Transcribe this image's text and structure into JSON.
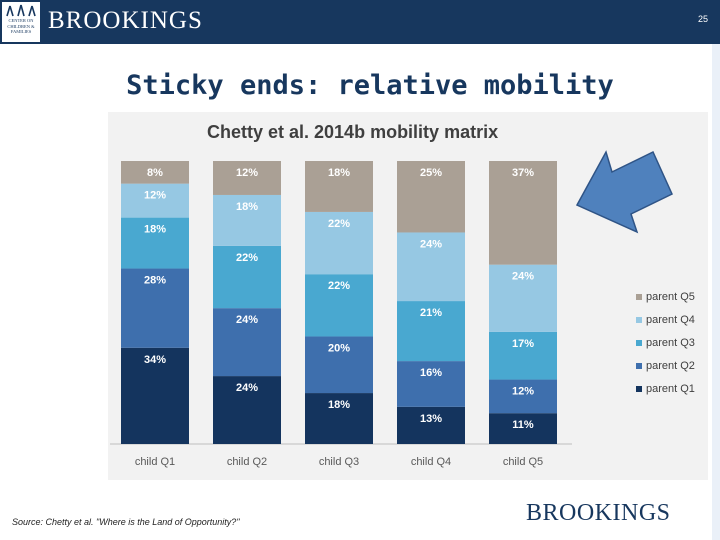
{
  "header": {
    "brand": "BROOKINGS",
    "logo_text": [
      "CENTER ON",
      "CHILDREN &",
      "FAMILIES"
    ],
    "page_number": "25"
  },
  "slide": {
    "title": "Sticky ends: relative mobility"
  },
  "footer": {
    "source": "Source: Chetty et al. \"Where is the Land of Opportunity?\"",
    "brand": "BROOKINGS"
  },
  "colors": {
    "header": "#17375e",
    "arrow": "#4f81bd",
    "arrow_stroke": "#2f5486"
  },
  "chart_data": {
    "type": "bar",
    "stacked": true,
    "title": "Chetty et al. 2014b mobility matrix",
    "categories": [
      "child Q1",
      "child Q2",
      "child Q3",
      "child Q4",
      "child Q5"
    ],
    "ylim": [
      0,
      100
    ],
    "grid": false,
    "legend_position": "right",
    "series": [
      {
        "name": "parent Q1",
        "color": "#14345e",
        "values": [
          34,
          24,
          18,
          13,
          11
        ],
        "labels": [
          "34%",
          "24%",
          "18%",
          "13%",
          "11%"
        ]
      },
      {
        "name": "parent Q2",
        "color": "#3e6fad",
        "values": [
          28,
          24,
          20,
          16,
          12
        ],
        "labels": [
          "28%",
          "24%",
          "20%",
          "16%",
          "12%"
        ]
      },
      {
        "name": "parent Q3",
        "color": "#49a8d0",
        "values": [
          18,
          22,
          22,
          21,
          17
        ],
        "labels": [
          "18%",
          "22%",
          "22%",
          "21%",
          "17%"
        ]
      },
      {
        "name": "parent Q4",
        "color": "#96c8e3",
        "values": [
          12,
          18,
          22,
          24,
          24
        ],
        "labels": [
          "12%",
          "18%",
          "22%",
          "24%",
          "24%"
        ]
      },
      {
        "name": "parent Q5",
        "color": "#aaa095",
        "values": [
          8,
          12,
          18,
          25,
          37
        ],
        "labels": [
          "8%",
          "12%",
          "18%",
          "25%",
          "37%"
        ]
      }
    ]
  }
}
